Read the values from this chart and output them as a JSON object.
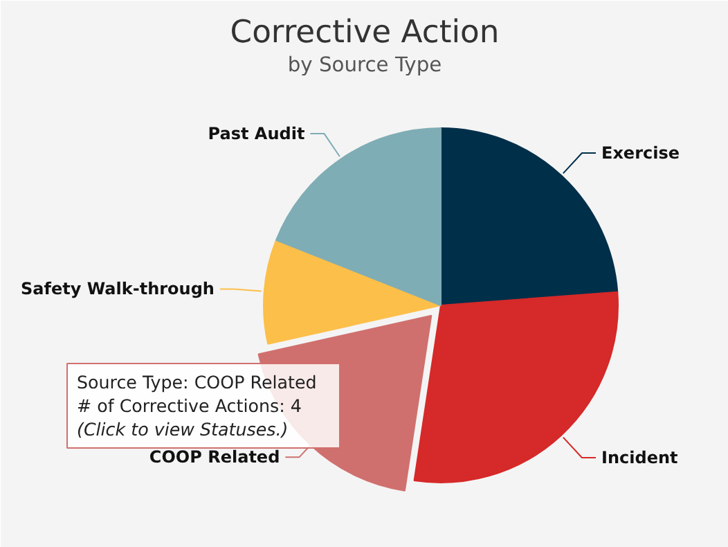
{
  "chart_data": {
    "type": "pie",
    "title": "Corrective Action",
    "subtitle": "by Source Type",
    "categories": [
      "Exercise",
      "Incident",
      "COOP Related",
      "Safety Walk-through",
      "Past Audit"
    ],
    "values": [
      23.8,
      28.6,
      19.1,
      9.5,
      19.0
    ],
    "colors": [
      "#002f4a",
      "#d62929",
      "#d0706e",
      "#fcbf49",
      "#7fadb5"
    ],
    "annotations": [
      "Source Type: COOP Related",
      "# of Corrective Actions: 4",
      "(Click to view Statuses.)"
    ]
  }
}
